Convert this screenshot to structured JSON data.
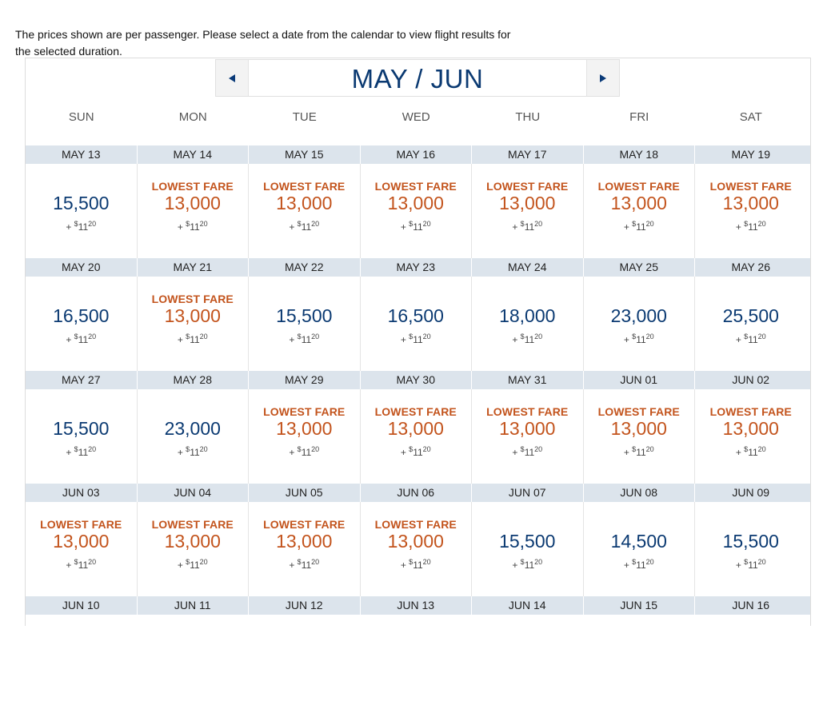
{
  "intro_text": "The prices shown are per passenger. Please select a date from the calendar to view flight results for the selected duration.",
  "calendar": {
    "month_title": "MAY / JUN",
    "weekdays": [
      "SUN",
      "MON",
      "TUE",
      "WED",
      "THU",
      "FRI",
      "SAT"
    ],
    "lowest_label": "LOWEST FARE",
    "tax": {
      "plus": "+",
      "currency": "$",
      "dollars": "11",
      "cents": "20"
    },
    "weeks": [
      {
        "days": [
          {
            "date": "MAY 13",
            "miles": "15,500",
            "lowest": false
          },
          {
            "date": "MAY 14",
            "miles": "13,000",
            "lowest": true
          },
          {
            "date": "MAY 15",
            "miles": "13,000",
            "lowest": true
          },
          {
            "date": "MAY 16",
            "miles": "13,000",
            "lowest": true
          },
          {
            "date": "MAY 17",
            "miles": "13,000",
            "lowest": true
          },
          {
            "date": "MAY 18",
            "miles": "13,000",
            "lowest": true
          },
          {
            "date": "MAY 19",
            "miles": "13,000",
            "lowest": true
          }
        ]
      },
      {
        "days": [
          {
            "date": "MAY 20",
            "miles": "16,500",
            "lowest": false
          },
          {
            "date": "MAY 21",
            "miles": "13,000",
            "lowest": true
          },
          {
            "date": "MAY 22",
            "miles": "15,500",
            "lowest": false
          },
          {
            "date": "MAY 23",
            "miles": "16,500",
            "lowest": false
          },
          {
            "date": "MAY 24",
            "miles": "18,000",
            "lowest": false
          },
          {
            "date": "MAY 25",
            "miles": "23,000",
            "lowest": false
          },
          {
            "date": "MAY 26",
            "miles": "25,500",
            "lowest": false
          }
        ]
      },
      {
        "days": [
          {
            "date": "MAY 27",
            "miles": "15,500",
            "lowest": false
          },
          {
            "date": "MAY 28",
            "miles": "23,000",
            "lowest": false
          },
          {
            "date": "MAY 29",
            "miles": "13,000",
            "lowest": true
          },
          {
            "date": "MAY 30",
            "miles": "13,000",
            "lowest": true
          },
          {
            "date": "MAY 31",
            "miles": "13,000",
            "lowest": true
          },
          {
            "date": "JUN 01",
            "miles": "13,000",
            "lowest": true
          },
          {
            "date": "JUN 02",
            "miles": "13,000",
            "lowest": true
          }
        ]
      },
      {
        "days": [
          {
            "date": "JUN 03",
            "miles": "13,000",
            "lowest": true
          },
          {
            "date": "JUN 04",
            "miles": "13,000",
            "lowest": true
          },
          {
            "date": "JUN 05",
            "miles": "13,000",
            "lowest": true
          },
          {
            "date": "JUN 06",
            "miles": "13,000",
            "lowest": true
          },
          {
            "date": "JUN 07",
            "miles": "15,500",
            "lowest": false
          },
          {
            "date": "JUN 08",
            "miles": "14,500",
            "lowest": false
          },
          {
            "date": "JUN 09",
            "miles": "15,500",
            "lowest": false
          }
        ]
      },
      {
        "days": [
          {
            "date": "JUN 10"
          },
          {
            "date": "JUN 11"
          },
          {
            "date": "JUN 12"
          },
          {
            "date": "JUN 13"
          },
          {
            "date": "JUN 14"
          },
          {
            "date": "JUN 15"
          },
          {
            "date": "JUN 16"
          }
        ]
      }
    ]
  },
  "colors": {
    "navy": "#0b3a72",
    "lowest_orange": "#c3541d",
    "date_bar": "#dce4ec"
  },
  "icons": {
    "prev": "triangle-left-icon",
    "next": "triangle-right-icon"
  }
}
